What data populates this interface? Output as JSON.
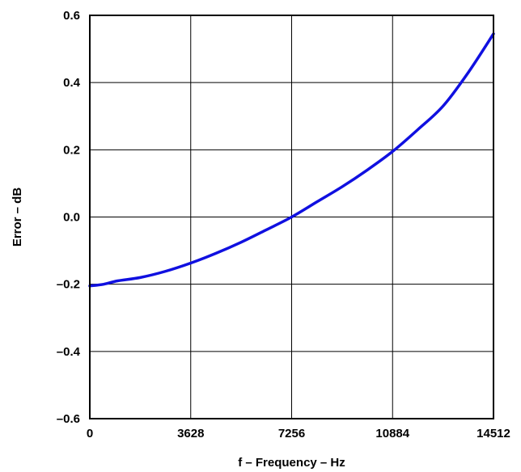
{
  "chart_data": {
    "type": "line",
    "title": "",
    "xlabel": "f – Frequency – Hz",
    "ylabel": "Error – dB",
    "xlim": [
      0,
      14512
    ],
    "ylim": [
      -0.6,
      0.6
    ],
    "x_ticks": [
      0,
      3628,
      7256,
      10884,
      14512
    ],
    "x_tick_labels": [
      "0",
      "3628",
      "7256",
      "10884",
      "14512"
    ],
    "y_ticks": [
      -0.6,
      -0.4,
      -0.2,
      0.0,
      0.2,
      0.4,
      0.6
    ],
    "y_tick_labels": [
      "–0.6",
      "–0.4",
      "–0.2",
      "0.0",
      "0.2",
      "0.4",
      "0.6"
    ],
    "grid": true,
    "series": [
      {
        "color": "#1010e0",
        "x": [
          0,
          500,
          1000,
          1814,
          2700,
          3628,
          4535,
          5442,
          6349,
          7256,
          8163,
          9070,
          9977,
          10884,
          11791,
          12698,
          13605,
          14512
        ],
        "y": [
          -0.205,
          -0.2,
          -0.19,
          -0.18,
          -0.162,
          -0.137,
          -0.108,
          -0.075,
          -0.038,
          0.0,
          0.045,
          0.09,
          0.14,
          0.195,
          0.26,
          0.33,
          0.43,
          0.545
        ]
      }
    ]
  }
}
